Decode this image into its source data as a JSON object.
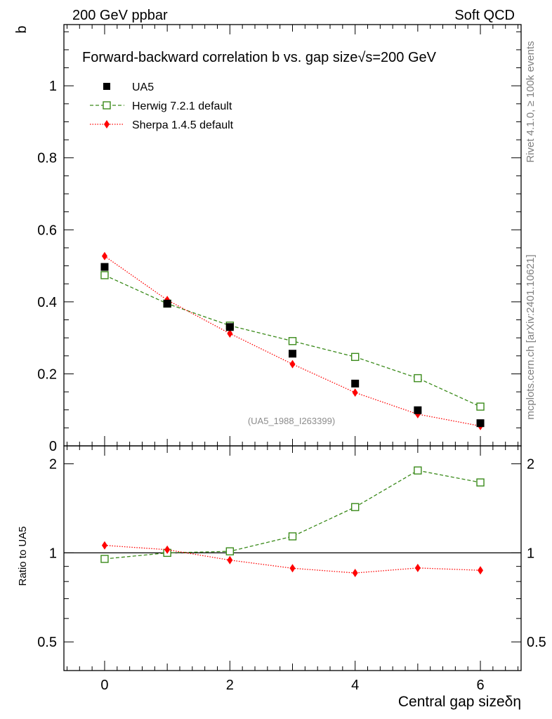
{
  "header": {
    "left": "200 GeV ppbar",
    "right": "Soft QCD"
  },
  "side_labels": {
    "rivet": "Rivet 4.1.0, ≥ 100k events",
    "mcplots": "mcplots.cern.ch [arXiv:2401.10621]"
  },
  "chart_data": {
    "type": "line",
    "title_main": "Forward-backward correlation b vs. gap size",
    "title_suffix": "=200 GeV",
    "sqrt_symbol": "√s",
    "ylabel": "b",
    "xlabel": "Central gap size",
    "xlabel_symbol": "δη",
    "watermark": "(UA5_1988_I263399)",
    "xlim": [
      -0.65,
      6.65
    ],
    "ylim": [
      0,
      1.17
    ],
    "x_ticks": [
      0,
      2,
      4,
      6
    ],
    "y_ticks": [
      0,
      0.2,
      0.4,
      0.6,
      0.8,
      1
    ],
    "y_tick_labels": [
      "0",
      "0.2",
      "0.4",
      "0.6",
      "0.8",
      "1"
    ],
    "x": [
      0,
      1,
      2,
      3,
      4,
      5,
      6
    ],
    "series": [
      {
        "name": "UA5",
        "key": "ua5",
        "color": "#000000",
        "marker": "square-filled",
        "line": "none",
        "values": [
          0.497,
          0.395,
          0.33,
          0.256,
          0.173,
          0.099,
          0.063
        ]
      },
      {
        "name": "Herwig 7.2.1 default",
        "key": "herwig",
        "color": "#3a8a1a",
        "marker": "square-open",
        "line": "dashed",
        "values": [
          0.474,
          0.395,
          0.334,
          0.291,
          0.247,
          0.188,
          0.109
        ]
      },
      {
        "name": "Sherpa 1.4.5 default",
        "key": "sherpa",
        "color": "#ff0000",
        "marker": "diamond",
        "line": "dotted",
        "values": [
          0.527,
          0.405,
          0.312,
          0.227,
          0.148,
          0.088,
          0.055
        ]
      }
    ],
    "ratio": {
      "ylabel": "Ratio to UA5",
      "ylim": [
        0.4,
        2.3
      ],
      "y_ticks": [
        0.5,
        1,
        2
      ],
      "y_tick_labels": [
        "0.5",
        "1",
        "2"
      ],
      "series": [
        {
          "name": "Herwig 7.2.1 default",
          "key": "herwig",
          "values": [
            0.954,
            1.0,
            1.012,
            1.137,
            1.428,
            1.899,
            1.73
          ]
        },
        {
          "name": "Sherpa 1.4.5 default",
          "key": "sherpa",
          "values": [
            1.06,
            1.025,
            0.945,
            0.887,
            0.855,
            0.889,
            0.873
          ]
        }
      ]
    }
  }
}
